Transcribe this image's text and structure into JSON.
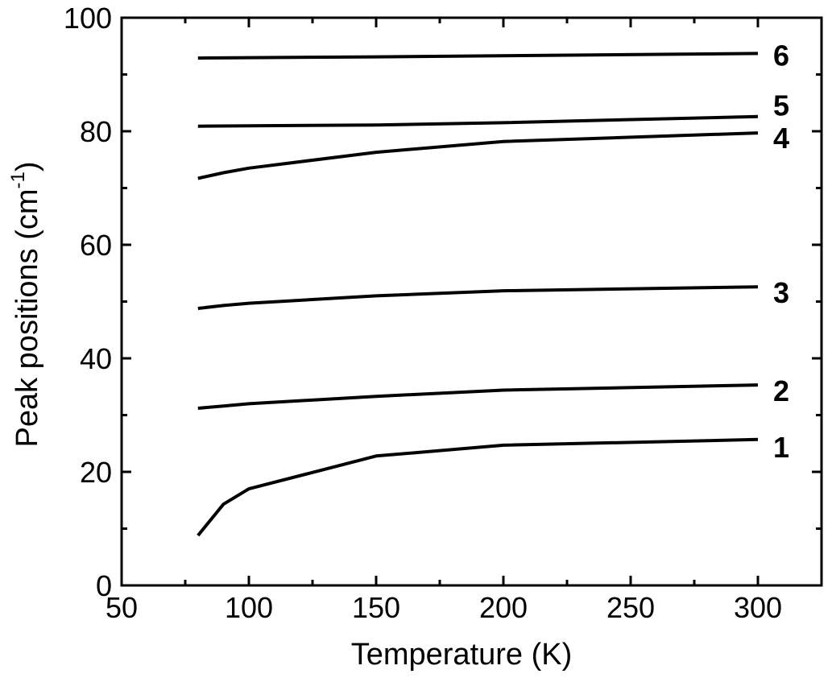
{
  "chart_data": {
    "type": "line",
    "xlabel": "Temperature (K)",
    "ylabel_main": "Peak positions (cm",
    "ylabel_sup": "-1",
    "ylabel_close": ")",
    "xlim": [
      50,
      325
    ],
    "ylim": [
      0,
      100
    ],
    "x_major_ticks": [
      50,
      100,
      150,
      200,
      250,
      300
    ],
    "x_minor_ticks": [
      75,
      125,
      175,
      225,
      275
    ],
    "y_major_ticks": [
      0,
      20,
      40,
      60,
      80,
      100
    ],
    "y_minor_ticks": [
      10,
      30,
      50,
      70,
      90
    ],
    "series": [
      {
        "name": "1",
        "x": [
          80,
          90,
          100,
          150,
          200,
          300
        ],
        "y": [
          8.8,
          14.3,
          17.0,
          22.8,
          24.7,
          25.7
        ]
      },
      {
        "name": "2",
        "x": [
          80,
          90,
          100,
          150,
          200,
          300
        ],
        "y": [
          31.2,
          31.6,
          32.0,
          33.3,
          34.4,
          35.3
        ]
      },
      {
        "name": "3",
        "x": [
          80,
          90,
          100,
          150,
          200,
          300
        ],
        "y": [
          48.8,
          49.3,
          49.7,
          51.0,
          51.9,
          52.6
        ]
      },
      {
        "name": "4",
        "x": [
          80,
          90,
          100,
          150,
          200,
          300
        ],
        "y": [
          71.7,
          72.7,
          73.5,
          76.3,
          78.2,
          79.7
        ]
      },
      {
        "name": "5",
        "x": [
          80,
          150,
          200,
          300
        ],
        "y": [
          80.9,
          81.1,
          81.5,
          82.6
        ]
      },
      {
        "name": "6",
        "x": [
          80,
          150,
          300
        ],
        "y": [
          92.9,
          93.1,
          93.7
        ]
      }
    ]
  }
}
